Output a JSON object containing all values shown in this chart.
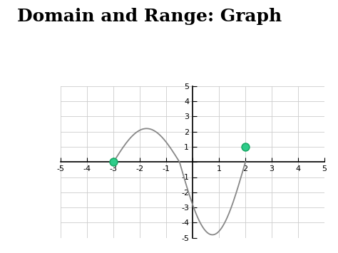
{
  "title": "Domain and Range: Graph",
  "title_fontsize": 18,
  "title_fontweight": "bold",
  "bg_color": "#ffffff",
  "grid_color": "#cccccc",
  "axis_color": "#000000",
  "curve_color": "#888888",
  "dot_color": "#2ecc8a",
  "dot_edge_color": "#1aaa66",
  "xlim": [
    -5,
    5
  ],
  "ylim": [
    -5,
    5
  ],
  "xticks": [
    -5,
    -4,
    -3,
    -2,
    -1,
    0,
    1,
    2,
    3,
    4,
    5
  ],
  "yticks": [
    -5,
    -4,
    -3,
    -2,
    -1,
    0,
    1,
    2,
    3,
    4,
    5
  ],
  "dot1_x": -3,
  "dot1_y": 0,
  "dot2_x": 2,
  "dot2_y": 1,
  "curve_x_start": -3,
  "curve_x_end": 2.0,
  "figsize": [
    4.74,
    3.55
  ],
  "dpi": 100
}
